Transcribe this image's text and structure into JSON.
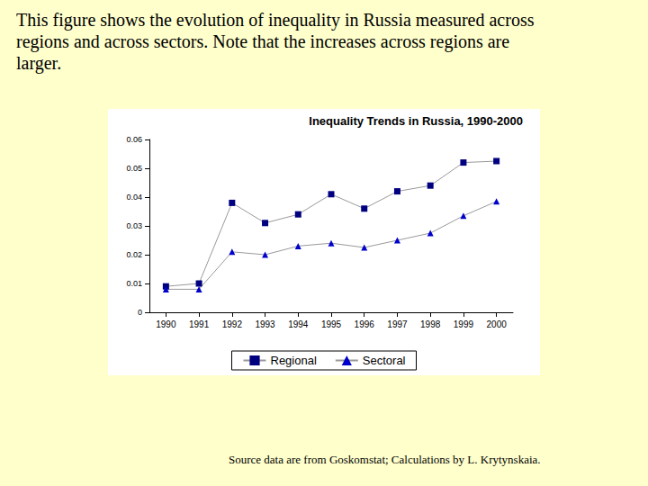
{
  "caption": "This figure shows the evolution of inequality in Russia measured across regions and across sectors.  Note that the increases across regions are larger.",
  "source": "Source data are from Goskomstat;  Calculations by L. Krytynskaia.",
  "chart_data": {
    "type": "line",
    "title": "Inequality Trends in Russia, 1990-2000",
    "categories": [
      "1990",
      "1991",
      "1992",
      "1993",
      "1994",
      "1995",
      "1996",
      "1997",
      "1998",
      "1999",
      "2000"
    ],
    "series": [
      {
        "name": "Regional",
        "color": "#000080",
        "marker": "square",
        "values": [
          0.009,
          0.01,
          0.038,
          0.031,
          0.034,
          0.041,
          0.036,
          0.042,
          0.044,
          0.052,
          0.0525
        ]
      },
      {
        "name": "Sectoral",
        "color": "#0000CC",
        "marker": "triangle",
        "values": [
          0.008,
          0.008,
          0.021,
          0.02,
          0.023,
          0.024,
          0.0225,
          0.025,
          0.0275,
          0.0335,
          0.0385
        ]
      }
    ],
    "ylim": [
      0,
      0.06
    ],
    "yticks": [
      0,
      0.01,
      0.02,
      0.03,
      0.04,
      0.05,
      0.06
    ],
    "grid": false,
    "legend": "bottom"
  }
}
